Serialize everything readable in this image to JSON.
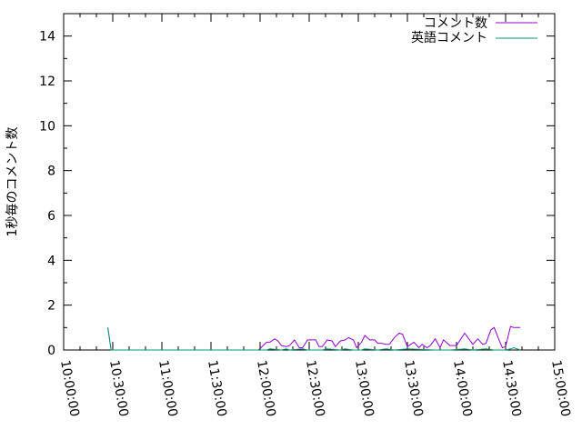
{
  "chart_data": {
    "type": "line",
    "title": "",
    "xlabel": "",
    "ylabel": "1秒毎のコメント数",
    "xlim": [
      "10:00:00",
      "15:00:00"
    ],
    "ylim": [
      0,
      15
    ],
    "xticks": [
      "10:00:00",
      "10:30:00",
      "11:00:00",
      "11:30:00",
      "12:00:00",
      "12:30:00",
      "13:00:00",
      "13:30:00",
      "14:00:00",
      "14:30:00",
      "15:00:00"
    ],
    "yticks": [
      "0",
      "2",
      "4",
      "6",
      "8",
      "10",
      "12",
      "14"
    ],
    "legend_position": "top-right",
    "grid": false,
    "series": [
      {
        "name": "コメント数",
        "color": "#9400d3",
        "x": [
          "10:27",
          "10:29",
          "11:59",
          "12:04",
          "12:06",
          "12:09",
          "12:11",
          "12:13",
          "12:16",
          "12:18",
          "12:21",
          "12:24",
          "12:26",
          "12:29",
          "12:34",
          "12:36",
          "12:38",
          "12:41",
          "12:44",
          "12:46",
          "12:49",
          "12:52",
          "12:54",
          "12:57",
          "12:59",
          "13:02",
          "13:04",
          "13:07",
          "13:10",
          "13:12",
          "13:14",
          "13:17",
          "13:19",
          "13:22",
          "13:25",
          "13:27",
          "13:30",
          "13:34",
          "13:37",
          "13:39",
          "13:42",
          "13:44",
          "13:47",
          "13:50",
          "13:52",
          "13:56",
          "14:00",
          "14:05",
          "14:08",
          "14:10",
          "14:13",
          "14:16",
          "14:18",
          "14:21",
          "14:23",
          "14:26",
          "14:28",
          "14:30",
          "14:33",
          "14:35",
          "14:39"
        ],
        "values": [
          1,
          0,
          0,
          0.35,
          0.35,
          0.5,
          0.4,
          0.2,
          0.15,
          0.2,
          0.45,
          0.1,
          0.1,
          0.45,
          0.45,
          0.15,
          0.15,
          0.45,
          0.4,
          0.15,
          0.4,
          0.45,
          0.55,
          0.45,
          0.1,
          0.35,
          0.65,
          0.45,
          0.45,
          0.3,
          0.3,
          0.25,
          0.25,
          0.55,
          0.75,
          0.7,
          0.15,
          0.35,
          0.1,
          0.25,
          0.1,
          0.2,
          0.5,
          0.1,
          0.45,
          0.2,
          0.2,
          0.75,
          0.45,
          0.25,
          0.5,
          0.25,
          0.3,
          0.9,
          1.0,
          0.45,
          0.1,
          0.15,
          1.05,
          1.0,
          1.0
        ]
      },
      {
        "name": "英語コメント",
        "color": "#009e73",
        "x": [
          "10:27",
          "10:29",
          "11:59",
          "12:04",
          "12:06",
          "12:13",
          "12:16",
          "12:18",
          "12:26",
          "12:29",
          "12:38",
          "12:41",
          "12:49",
          "12:52",
          "12:57",
          "13:02",
          "13:04",
          "13:12",
          "13:17",
          "13:22",
          "13:30",
          "13:47",
          "13:56",
          "14:05",
          "14:10",
          "14:18",
          "14:23",
          "14:30",
          "14:33",
          "14:35",
          "14:39"
        ],
        "values": [
          1,
          0,
          0,
          0,
          0.05,
          0,
          0.05,
          0,
          0.05,
          0,
          0,
          0.05,
          0,
          0.05,
          0,
          0,
          0.05,
          0,
          0.05,
          0,
          0.05,
          0,
          0,
          0.05,
          0,
          0.05,
          0,
          0,
          0.05,
          0.1,
          0
        ]
      }
    ]
  }
}
